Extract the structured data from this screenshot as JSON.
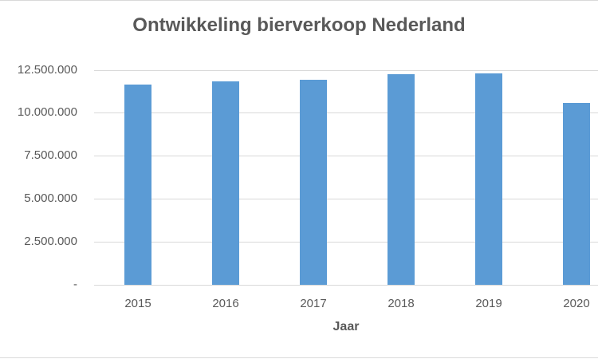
{
  "chart_data": {
    "type": "bar",
    "title": "Ontwikkeling bierverkoop Nederland",
    "xlabel": "Jaar",
    "ylabel": "",
    "categories": [
      "2015",
      "2016",
      "2017",
      "2018",
      "2019",
      "2020"
    ],
    "values": [
      11640000,
      11830000,
      11920000,
      12240000,
      12290000,
      10580000
    ],
    "ylim": [
      0,
      12500000
    ],
    "yticks": [
      0,
      2500000,
      5000000,
      7500000,
      10000000,
      12500000
    ],
    "ytick_labels": [
      "-",
      "2.500.000",
      "5.000.000",
      "7.500.000",
      "10.000.000",
      "12.500.000"
    ],
    "grid": true,
    "legend": null,
    "bar_color": "#5b9bd5"
  },
  "colors": {
    "bar": "#5b9bd5",
    "text": "#595959",
    "grid": "#d9d9d9"
  }
}
